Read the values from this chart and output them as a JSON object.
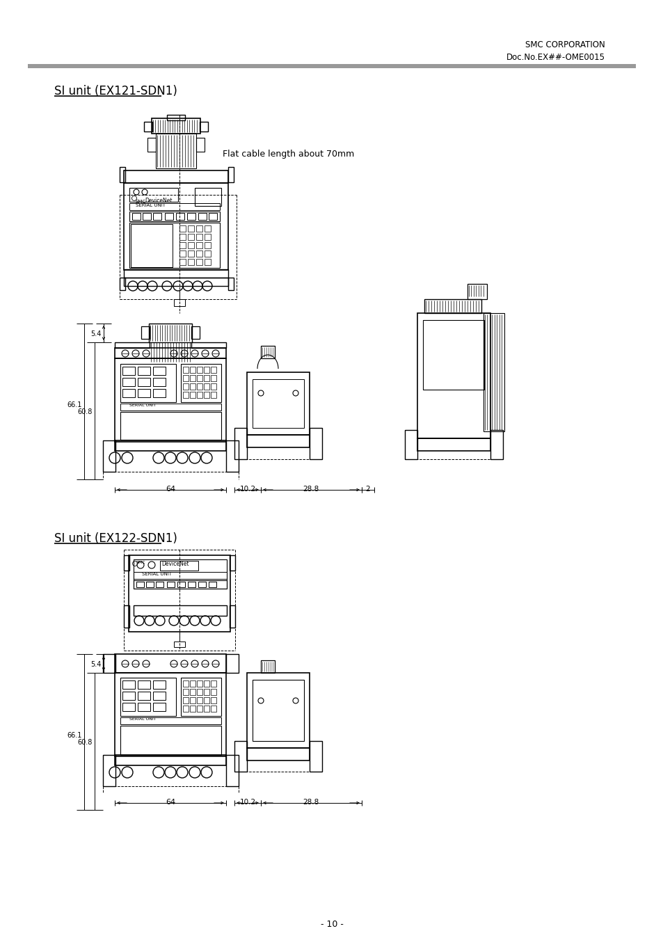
{
  "bg_color": "#ffffff",
  "header_company": "SMC CORPORATION",
  "header_docno": "Doc.No.EX##-OME0015",
  "section1_title": "SI unit (EX121-SDN1)",
  "section2_title": "SI unit (EX122-SDN1)",
  "page_number": "- 10 -",
  "flat_cable_label": "Flat cable length about 70mm",
  "line_color": "#000000",
  "text_color": "#000000"
}
